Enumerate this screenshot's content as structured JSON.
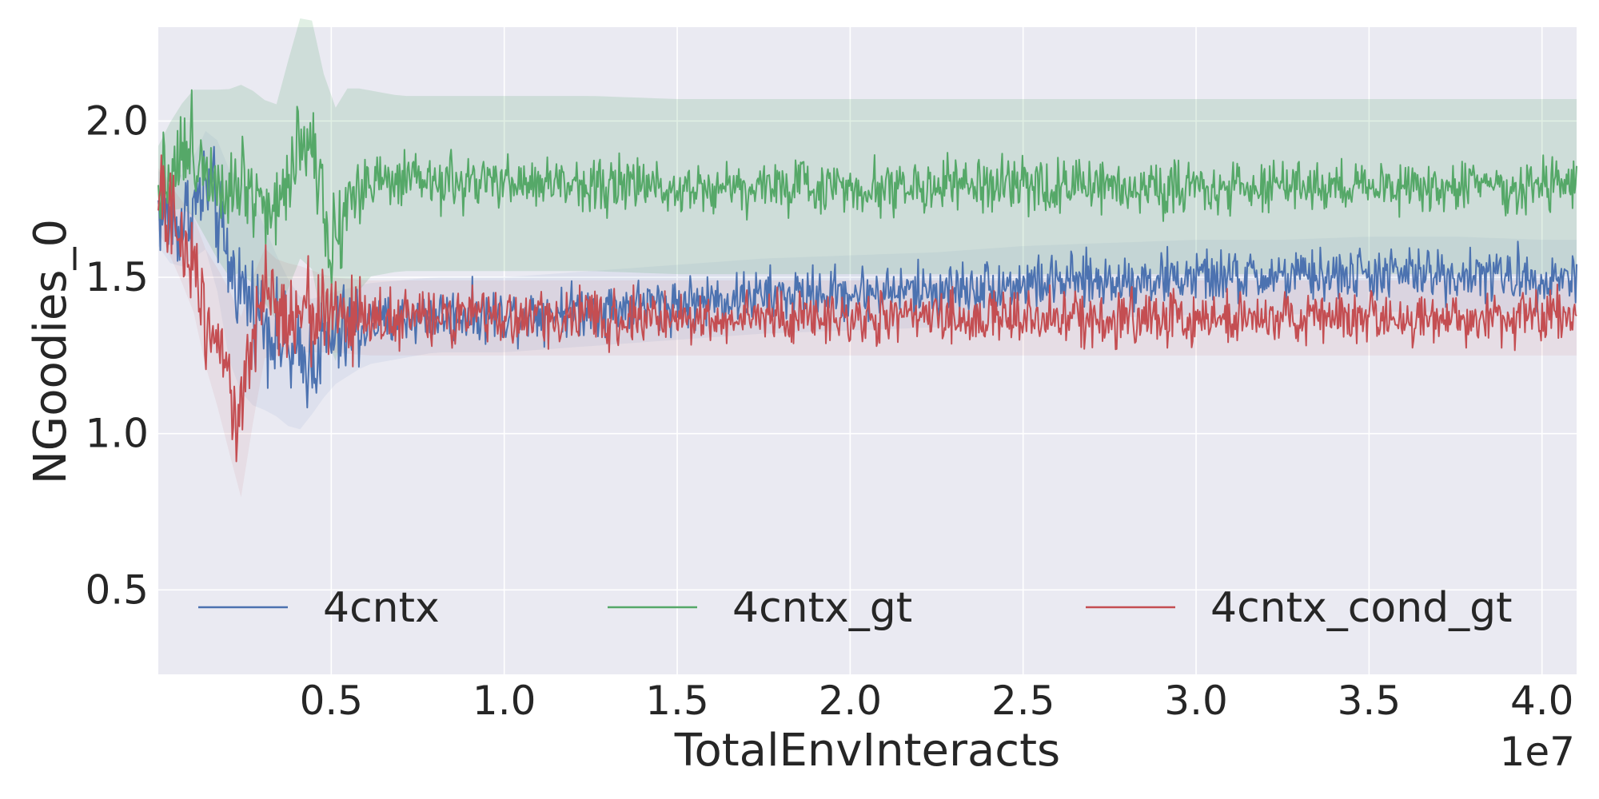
{
  "chart_data": {
    "type": "line",
    "title": "",
    "xlabel": "TotalEnvInteracts",
    "ylabel": "NGoodies_0",
    "x_offset_label": "1e7",
    "xlim": [
      0.0,
      4.1
    ],
    "ylim": [
      0.23,
      2.3
    ],
    "x_ticks": [
      0.5,
      1.0,
      1.5,
      2.0,
      2.5,
      3.0,
      3.5,
      4.0
    ],
    "x_tick_labels": [
      "0.5",
      "1.0",
      "1.5",
      "2.0",
      "2.5",
      "3.0",
      "3.5",
      "4.0"
    ],
    "y_ticks": [
      0.5,
      1.0,
      1.5,
      2.0
    ],
    "y_tick_labels": [
      "0.5",
      "1.0",
      "1.5",
      "2.0"
    ],
    "grid": true,
    "legend_placement": "lower center",
    "series": [
      {
        "name": "4cntx",
        "color": "#4c72b0",
        "x": [
          0.0,
          0.05,
          0.1,
          0.15,
          0.2,
          0.25,
          0.3,
          0.35,
          0.4,
          0.45,
          0.5,
          0.6,
          0.8,
          1.0,
          1.25,
          1.5,
          1.75,
          2.0,
          2.25,
          2.5,
          2.75,
          3.0,
          3.25,
          3.5,
          3.75,
          4.0,
          4.1
        ],
        "values": [
          1.72,
          1.66,
          1.72,
          1.8,
          1.55,
          1.45,
          1.38,
          1.3,
          1.22,
          1.25,
          1.3,
          1.35,
          1.38,
          1.38,
          1.4,
          1.42,
          1.44,
          1.45,
          1.46,
          1.48,
          1.49,
          1.5,
          1.5,
          1.51,
          1.51,
          1.5,
          1.5
        ],
        "band": [
          0.12,
          0.14,
          0.16,
          0.2,
          0.3,
          0.35,
          0.3,
          0.25,
          0.22,
          0.18,
          0.15,
          0.13,
          0.12,
          0.12,
          0.12,
          0.12,
          0.12,
          0.12,
          0.12,
          0.12,
          0.12,
          0.12,
          0.12,
          0.12,
          0.12,
          0.12,
          0.12
        ]
      },
      {
        "name": "4cntx_gt",
        "color": "#55a868",
        "x": [
          0.0,
          0.05,
          0.1,
          0.15,
          0.2,
          0.25,
          0.3,
          0.35,
          0.4,
          0.45,
          0.5,
          0.55,
          0.6,
          0.7,
          0.8,
          1.0,
          1.25,
          1.5,
          1.75,
          2.0,
          2.25,
          2.5,
          2.75,
          3.0,
          3.25,
          3.5,
          3.75,
          4.0,
          4.1
        ],
        "values": [
          1.8,
          1.88,
          1.9,
          1.85,
          1.8,
          1.82,
          1.75,
          1.7,
          1.95,
          1.92,
          1.6,
          1.75,
          1.8,
          1.8,
          1.8,
          1.8,
          1.8,
          1.79,
          1.79,
          1.79,
          1.79,
          1.79,
          1.79,
          1.79,
          1.79,
          1.79,
          1.79,
          1.79,
          1.79
        ],
        "band": [
          0.12,
          0.15,
          0.2,
          0.25,
          0.3,
          0.3,
          0.32,
          0.35,
          0.38,
          0.4,
          0.42,
          0.36,
          0.3,
          0.28,
          0.28,
          0.28,
          0.28,
          0.28,
          0.28,
          0.28,
          0.28,
          0.28,
          0.28,
          0.28,
          0.28,
          0.28,
          0.28,
          0.28,
          0.28
        ]
      },
      {
        "name": "4cntx_cond_gt",
        "color": "#c44e52",
        "x": [
          0.0,
          0.05,
          0.1,
          0.15,
          0.2,
          0.225,
          0.25,
          0.28,
          0.3,
          0.35,
          0.4,
          0.5,
          0.6,
          0.8,
          1.0,
          1.25,
          1.5,
          1.75,
          2.0,
          2.25,
          2.5,
          2.75,
          3.0,
          3.25,
          3.5,
          3.75,
          4.0,
          4.1
        ],
        "values": [
          1.75,
          1.65,
          1.55,
          1.35,
          1.25,
          1.0,
          1.15,
          1.3,
          1.42,
          1.4,
          1.4,
          1.38,
          1.37,
          1.37,
          1.37,
          1.37,
          1.37,
          1.37,
          1.37,
          1.37,
          1.37,
          1.37,
          1.37,
          1.37,
          1.37,
          1.37,
          1.37,
          1.37
        ],
        "band": [
          0.1,
          0.12,
          0.15,
          0.2,
          0.25,
          0.3,
          0.28,
          0.22,
          0.18,
          0.15,
          0.14,
          0.12,
          0.12,
          0.12,
          0.12,
          0.12,
          0.12,
          0.12,
          0.12,
          0.12,
          0.12,
          0.12,
          0.12,
          0.12,
          0.12,
          0.12,
          0.12,
          0.12
        ]
      }
    ]
  }
}
